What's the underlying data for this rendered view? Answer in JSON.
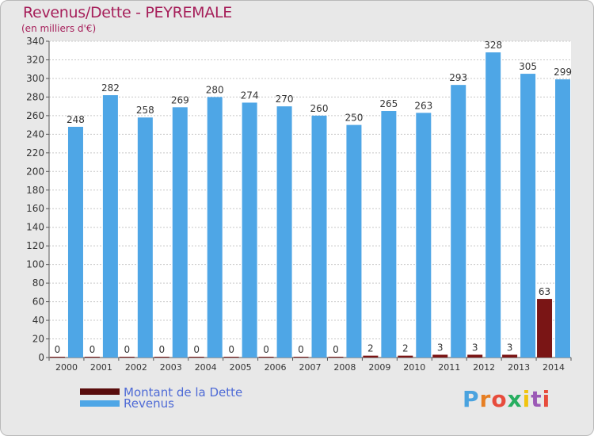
{
  "chart_data": {
    "type": "bar",
    "title": "Revenus/Dette - PEYREMALE",
    "subtitle": "(en milliers d'€)",
    "categories": [
      "2000",
      "2001",
      "2002",
      "2003",
      "2004",
      "2005",
      "2006",
      "2007",
      "2008",
      "2009",
      "2010",
      "2011",
      "2012",
      "2013",
      "2014"
    ],
    "series": [
      {
        "name": "Montant de la Dette",
        "color": "#8b1a1a",
        "values": [
          0,
          0,
          0,
          0,
          0,
          0,
          0,
          0,
          0,
          2,
          2,
          3,
          3,
          3,
          63
        ]
      },
      {
        "name": "Revenus",
        "color": "#4ea6e6",
        "values": [
          248,
          282,
          258,
          269,
          280,
          274,
          270,
          260,
          250,
          265,
          263,
          293,
          328,
          305,
          299
        ]
      }
    ],
    "yticks": [
      0,
      20,
      40,
      60,
      80,
      100,
      120,
      140,
      160,
      180,
      200,
      220,
      240,
      260,
      280,
      300,
      320,
      340
    ],
    "ylim": [
      0,
      340
    ],
    "grid": true,
    "legend_position": "bottom-left"
  },
  "logo": {
    "text": "Proxiti",
    "letters": [
      "P",
      "r",
      "o",
      "x",
      "i",
      "t",
      "i"
    ],
    "colors": [
      "#4aa3df",
      "#e67e22",
      "#e74c3c",
      "#27ae60",
      "#f1c40f",
      "#9b59b6",
      "#e74c3c"
    ]
  }
}
